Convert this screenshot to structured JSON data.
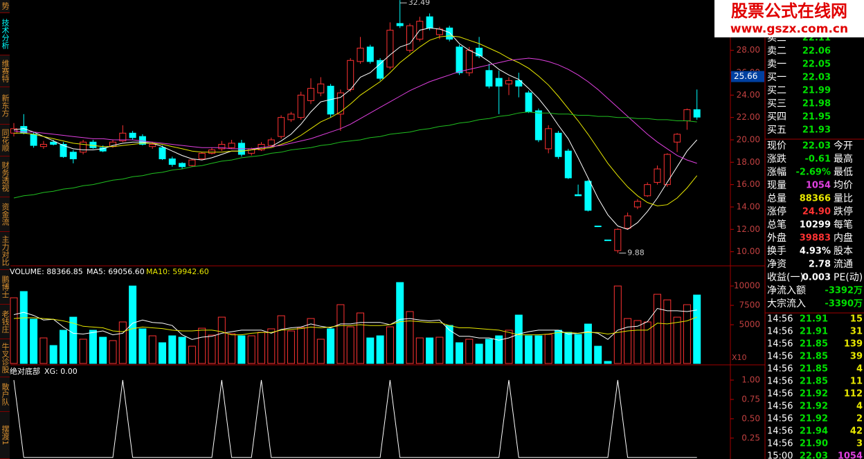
{
  "sidebar": {
    "tabs": [
      "势",
      "技术分析",
      "维赛特",
      "新东方",
      "同花顺",
      "财务透视",
      "资金流",
      "主力对比",
      "鹏博士",
      "老钱庄",
      "牛叉诊股",
      "散户队",
      "摆渡1"
    ],
    "selected": 1
  },
  "watermark": {
    "title": "股票公式在线网",
    "url": "www.gszx.com.cn"
  },
  "chart_data": [
    {
      "type": "candlestick",
      "color_up": "#ff3232",
      "color_down": "#00ffff",
      "open": [
        20.6,
        21.2,
        20.5,
        19.4,
        19.8,
        19.6,
        18.9,
        18.9,
        19.8,
        19.3,
        19.4,
        19.9,
        20.6,
        20.3,
        19.4,
        19.3,
        18.3,
        17.9,
        17.7,
        18.3,
        18.8,
        19.2,
        19.3,
        19.7,
        18.8,
        19.1,
        19.5,
        20.3,
        21.8,
        22.0,
        23.5,
        24.2,
        24.8,
        22.3,
        24.5,
        27.0,
        28.3,
        27.1,
        26.5,
        30.4,
        28.0,
        29.0,
        31.0,
        29.4,
        30.0,
        28.3,
        26.0,
        28.2,
        26.2,
        25.5,
        25.0,
        25.3,
        24.2,
        22.6,
        19.2,
        20.6,
        19.0,
        15.1,
        16.3,
        12.3,
        11.05,
        10.1,
        12.1,
        14.0,
        15.0,
        16.2,
        16.0,
        19.8,
        21.7,
        22.7
      ],
      "high": [
        21.5,
        22.3,
        20.7,
        19.9,
        20.0,
        19.8,
        19.1,
        20.0,
        20.0,
        19.5,
        20.0,
        21.3,
        20.8,
        20.5,
        19.8,
        19.5,
        18.5,
        18.0,
        18.3,
        18.9,
        19.3,
        19.9,
        20.0,
        20.0,
        19.3,
        19.8,
        20.2,
        22.2,
        22.5,
        24.3,
        25.5,
        25.6,
        25.0,
        24.5,
        27.3,
        29.2,
        28.5,
        27.3,
        30.5,
        32.49,
        30.4,
        31.0,
        31.3,
        30.1,
        30.2,
        28.5,
        28.3,
        29.2,
        26.8,
        26.2,
        25.6,
        26.0,
        24.4,
        22.8,
        21.3,
        20.8,
        19.2,
        16.0,
        16.4,
        12.3,
        11.05,
        12.1,
        13.5,
        14.7,
        16.2,
        17.7,
        18.8,
        20.6,
        22.8,
        24.5
      ],
      "low": [
        20.3,
        20.5,
        19.3,
        19.2,
        19.5,
        18.4,
        17.9,
        18.7,
        19.2,
        18.9,
        19.3,
        19.8,
        20.0,
        19.5,
        19.2,
        18.2,
        17.6,
        17.4,
        17.6,
        18.2,
        18.7,
        19.0,
        19.2,
        18.5,
        18.6,
        19.0,
        19.4,
        20.1,
        21.6,
        21.8,
        23.2,
        23.9,
        22.0,
        20.8,
        24.3,
        26.8,
        26.8,
        25.3,
        26.3,
        30.0,
        27.8,
        28.8,
        29.8,
        29.0,
        28.8,
        25.8,
        25.7,
        27.3,
        24.6,
        22.3,
        24.0,
        23.8,
        22.4,
        19.8,
        18.8,
        18.3,
        16.5,
        15.0,
        13.6,
        12.2,
        11.0,
        9.88,
        12.0,
        13.8,
        14.9,
        16.0,
        15.8,
        18.9,
        20.9,
        21.8
      ],
      "close": [
        21.0,
        20.6,
        19.5,
        19.6,
        19.6,
        18.5,
        18.3,
        19.8,
        19.3,
        19.0,
        19.8,
        20.6,
        20.2,
        19.6,
        19.6,
        18.3,
        17.8,
        17.6,
        18.2,
        18.8,
        19.1,
        19.6,
        19.7,
        18.7,
        19.2,
        19.6,
        20.0,
        22.0,
        22.3,
        24.0,
        24.6,
        25.0,
        22.3,
        24.2,
        27.1,
        28.2,
        27.0,
        25.5,
        29.8,
        30.2,
        30.2,
        30.6,
        30.0,
        29.9,
        29.0,
        26.0,
        28.0,
        27.5,
        24.8,
        24.8,
        25.3,
        24.8,
        22.5,
        20.0,
        21.0,
        18.5,
        16.6,
        15.0,
        13.7,
        12.25,
        11.0,
        12.0,
        13.2,
        14.5,
        16.0,
        17.4,
        18.7,
        20.5,
        22.7,
        22.03
      ],
      "series": [
        {
          "color": "#ffffff",
          "values": [
            20.9,
            21.0,
            20.7,
            20.3,
            19.9,
            19.5,
            19.2,
            19.1,
            19.1,
            19.2,
            19.5,
            19.7,
            19.8,
            19.8,
            19.7,
            19.4,
            19.0,
            18.6,
            18.3,
            18.2,
            18.4,
            18.7,
            19.0,
            19.0,
            19.1,
            19.3,
            19.4,
            19.9,
            20.5,
            21.4,
            22.5,
            23.4,
            23.6,
            23.8,
            24.5,
            25.6,
            26.0,
            26.8,
            27.6,
            28.3,
            28.6,
            29.8,
            30.0,
            29.9,
            29.6,
            28.6,
            28.0,
            27.6,
            27.0,
            26.3,
            25.8,
            25.4,
            24.6,
            23.7,
            22.6,
            21.3,
            20.1,
            18.4,
            16.6,
            14.8,
            13.3,
            12.3,
            12.0,
            12.6,
            13.6,
            14.8,
            16.2,
            17.6,
            19.0,
            20.0
          ]
        },
        {
          "color": "#e8e800",
          "values": [
            20.6,
            20.6,
            20.5,
            20.3,
            20.1,
            19.9,
            19.7,
            19.6,
            19.5,
            19.4,
            19.4,
            19.5,
            19.6,
            19.7,
            19.7,
            19.6,
            19.4,
            19.2,
            19.0,
            18.9,
            18.9,
            18.9,
            19.0,
            19.0,
            19.1,
            19.2,
            19.3,
            19.6,
            19.9,
            20.4,
            21.0,
            21.6,
            22.0,
            22.5,
            23.2,
            24.0,
            24.6,
            25.2,
            26.0,
            26.9,
            27.6,
            28.3,
            28.9,
            29.2,
            29.3,
            29.2,
            28.9,
            28.6,
            28.2,
            27.8,
            27.3,
            26.9,
            26.4,
            25.7,
            24.9,
            23.9,
            22.8,
            21.7,
            20.5,
            19.2,
            17.9,
            16.8,
            15.8,
            15.0,
            14.4,
            14.1,
            14.2,
            14.8,
            15.7,
            16.8
          ]
        },
        {
          "color": "#e040e0",
          "values": [
            20.8,
            20.7,
            20.7,
            20.6,
            20.5,
            20.4,
            20.3,
            20.2,
            20.1,
            20.1,
            20.0,
            20.0,
            20.0,
            19.9,
            19.8,
            19.7,
            19.6,
            19.5,
            19.4,
            19.3,
            19.3,
            19.3,
            19.2,
            19.2,
            19.2,
            19.3,
            19.4,
            19.5,
            19.7,
            19.9,
            20.1,
            20.4,
            20.7,
            21.0,
            21.4,
            21.9,
            22.4,
            22.9,
            23.4,
            23.9,
            24.4,
            24.8,
            25.2,
            25.5,
            25.8,
            26.1,
            26.3,
            26.5,
            26.7,
            26.9,
            27.1,
            27.2,
            27.3,
            27.2,
            27.0,
            26.7,
            26.3,
            25.8,
            25.2,
            24.5,
            23.7,
            22.9,
            22.1,
            21.3,
            20.5,
            19.8,
            19.2,
            18.6,
            18.2,
            17.9
          ]
        },
        {
          "color": "#20c020",
          "values": [
            14.8,
            15.0,
            15.1,
            15.3,
            15.4,
            15.6,
            15.7,
            15.9,
            16.0,
            16.2,
            16.4,
            16.5,
            16.7,
            16.8,
            17.0,
            17.1,
            17.3,
            17.4,
            17.6,
            17.7,
            17.9,
            18.1,
            18.2,
            18.4,
            18.5,
            18.6,
            18.8,
            18.9,
            19.1,
            19.2,
            19.3,
            19.5,
            19.6,
            19.8,
            19.9,
            20.0,
            20.2,
            20.3,
            20.5,
            20.6,
            20.7,
            20.9,
            21.0,
            21.2,
            21.3,
            21.5,
            21.6,
            21.8,
            21.9,
            22.1,
            22.2,
            22.4,
            22.5,
            22.4,
            22.4,
            22.3,
            22.3,
            22.2,
            22.2,
            22.1,
            22.1,
            22.0,
            22.0,
            21.9,
            21.9,
            21.8,
            21.8,
            21.7,
            21.7,
            21.6
          ]
        }
      ],
      "ylim": [
        8.8,
        32.5
      ],
      "yticks": [
        {
          "value": 10,
          "label": "10.00"
        },
        {
          "value": 12,
          "label": "12.00"
        },
        {
          "value": 14,
          "label": "14.00"
        },
        {
          "value": 16,
          "label": "16.00"
        },
        {
          "value": 18,
          "label": "18.00"
        },
        {
          "value": 20,
          "label": "20.00"
        },
        {
          "value": 22,
          "label": "22.00"
        },
        {
          "value": 24,
          "label": "24.00"
        },
        {
          "value": 26,
          "label": "26.00"
        },
        {
          "value": 28,
          "label": "28.00"
        }
      ],
      "marker": {
        "value": 25.66,
        "label": "25.66"
      },
      "high_label": "32.49",
      "low_label": "9.88"
    },
    {
      "type": "bar",
      "title": "VOLUME: 88366.85",
      "values": [
        8480,
        9290,
        5720,
        3300,
        2320,
        4290,
        5980,
        3130,
        4290,
        3390,
        2950,
        5360,
        10000,
        4470,
        3570,
        2680,
        3570,
        3390,
        2230,
        4550,
        3660,
        5980,
        3840,
        3570,
        3570,
        4020,
        4470,
        6160,
        4200,
        4640,
        5800,
        3130,
        4470,
        7590,
        4730,
        6520,
        3300,
        3570,
        4730,
        10450,
        6700,
        3300,
        3300,
        3390,
        4910,
        2680,
        3130,
        2500,
        3130,
        3570,
        4290,
        6250,
        3570,
        3570,
        3750,
        4290,
        4020,
        3750,
        5090,
        2230,
        270,
        10000,
        5800,
        5540,
        5360,
        8930,
        8210,
        5980,
        7590,
        8837
      ],
      "series": [
        {
          "name": "MA5: 69056.60",
          "color": "#ffffff",
          "values": [
            6300,
            6600,
            6200,
            5600,
            5700,
            4700,
            3900,
            3800,
            4000,
            4200,
            3700,
            3900,
            5200,
            5600,
            5300,
            5200,
            4900,
            3700,
            3100,
            3400,
            3500,
            3900,
            4100,
            4300,
            4300,
            4300,
            3900,
            4400,
            4600,
            4700,
            5100,
            4800,
            4600,
            5100,
            5100,
            5300,
            5300,
            5300,
            5000,
            5700,
            5800,
            5600,
            5500,
            5600,
            4300,
            3500,
            3500,
            3300,
            3300,
            3000,
            3300,
            3800,
            4100,
            4300,
            4300,
            4300,
            3800,
            3900,
            4100,
            3900,
            3100,
            4300,
            4700,
            4800,
            5400,
            7100,
            6800,
            6800,
            6700,
            6906
          ]
        },
        {
          "name": "MA10: 59942.60",
          "color": "#e8e800",
          "values": [
            5800,
            5900,
            5900,
            5800,
            5700,
            5500,
            5200,
            4800,
            4700,
            4600,
            4200,
            4100,
            4500,
            4700,
            4600,
            4500,
            4300,
            4200,
            4200,
            4300,
            4300,
            4100,
            3700,
            3700,
            3900,
            4000,
            4000,
            4300,
            4400,
            4500,
            4700,
            4600,
            4700,
            4900,
            4900,
            5000,
            4900,
            4900,
            5000,
            5400,
            5500,
            5400,
            5300,
            5300,
            4900,
            4600,
            4600,
            4500,
            4400,
            4300,
            4000,
            3700,
            3700,
            3700,
            3800,
            4000,
            4000,
            3900,
            4000,
            4000,
            3800,
            4000,
            4200,
            4300,
            4300,
            5200,
            5100,
            5300,
            5500,
            5994
          ]
        }
      ],
      "ylim": [
        0,
        12600
      ],
      "yticks": [
        5000,
        7500,
        10000
      ],
      "multiplier_label": "X10"
    },
    {
      "type": "line",
      "title": "绝对底部",
      "series": [
        {
          "name": "XG: 0.00",
          "color": "#ffffff",
          "values": [
            1,
            0,
            0,
            0,
            0,
            0,
            0,
            0,
            0,
            0,
            0,
            1,
            0,
            0,
            0,
            0,
            0,
            0,
            0,
            0,
            0,
            1,
            0,
            0,
            0,
            1,
            0,
            0,
            0,
            0,
            0,
            0,
            0,
            0,
            0,
            0,
            0,
            0,
            1,
            0,
            0,
            0,
            0,
            0,
            0,
            0,
            0,
            0,
            0,
            0,
            1,
            0,
            0,
            0,
            0,
            0,
            0,
            0,
            0,
            0,
            0,
            1,
            0,
            0,
            0,
            0,
            0,
            0,
            0,
            0
          ]
        }
      ],
      "ylim": [
        -0.02,
        1.17
      ],
      "yticks": [
        {
          "value": 0.25,
          "label": "0.25"
        },
        {
          "value": 0.5,
          "label": "0.50"
        },
        {
          "value": 0.75,
          "label": "0.75"
        },
        {
          "value": 1,
          "label": "1.00"
        }
      ]
    }
  ],
  "quote": {
    "book": [
      {
        "label": "卖三",
        "price": "22.11"
      },
      {
        "label": "卖二",
        "price": "22.06"
      },
      {
        "label": "卖一",
        "price": "22.05"
      },
      {
        "label": "买一",
        "price": "22.03"
      },
      {
        "label": "买二",
        "price": "21.99"
      },
      {
        "label": "买三",
        "price": "21.98"
      },
      {
        "label": "买四",
        "price": "21.95"
      },
      {
        "label": "买五",
        "price": "21.93"
      }
    ],
    "stats": [
      {
        "label": "现价",
        "value": "22.03",
        "color": "#00e000",
        "label2": "今开"
      },
      {
        "label": "涨跌",
        "value": "-0.61",
        "color": "#00e000",
        "label2": "最高"
      },
      {
        "label": "涨幅",
        "value": "-2.69%",
        "color": "#00e000",
        "label2": "最低"
      },
      {
        "label": "现量",
        "value": "1054",
        "color": "#e040e0",
        "label2": "均价"
      },
      {
        "label": "总量",
        "value": "88366",
        "color": "#e8e800",
        "label2": "量比"
      },
      {
        "label": "涨停",
        "value": "24.90",
        "color": "#ff3232",
        "label2": "跌停"
      },
      {
        "label": "总笔",
        "value": "10299",
        "color": "#ffffff",
        "label2": "每笔"
      },
      {
        "label": "外盘",
        "value": "39883",
        "color": "#ff3232",
        "label2": "内盘"
      },
      {
        "label": "换手",
        "value": "4.93%",
        "color": "#ffffff",
        "label2": "股本"
      },
      {
        "label": "净资",
        "value": "2.78",
        "color": "#ffffff",
        "label2": "流通"
      },
      {
        "label": "收益(一)",
        "value": "0.003",
        "color": "#ffffff",
        "label2": "PE(动)"
      },
      {
        "label": "净流入额",
        "value": "-3392万",
        "color": "#00e000"
      },
      {
        "label": "大宗流入",
        "value": "-3390万",
        "color": "#00e000"
      }
    ],
    "trades": [
      {
        "time": "14:56",
        "price": "21.91",
        "volume": "15",
        "color": "#e8e800"
      },
      {
        "time": "14:56",
        "price": "21.91",
        "volume": "31",
        "color": "#e8e800"
      },
      {
        "time": "14:56",
        "price": "21.85",
        "volume": "139",
        "color": "#e8e800"
      },
      {
        "time": "14:56",
        "price": "21.85",
        "volume": "39",
        "color": "#e8e800"
      },
      {
        "time": "14:56",
        "price": "21.85",
        "volume": "4",
        "color": "#e8e800"
      },
      {
        "time": "14:56",
        "price": "21.85",
        "volume": "11",
        "color": "#e8e800"
      },
      {
        "time": "14:56",
        "price": "21.92",
        "volume": "112",
        "color": "#e8e800"
      },
      {
        "time": "14:56",
        "price": "21.92",
        "volume": "4",
        "color": "#e8e800"
      },
      {
        "time": "14:56",
        "price": "21.92",
        "volume": "2",
        "color": "#e8e800"
      },
      {
        "time": "14:56",
        "price": "21.94",
        "volume": "42",
        "color": "#e8e800"
      },
      {
        "time": "14:56",
        "price": "21.90",
        "volume": "3",
        "color": "#e8e800"
      },
      {
        "time": "15:00",
        "price": "22.03",
        "volume": "1054",
        "color": "#e040e0"
      }
    ]
  }
}
